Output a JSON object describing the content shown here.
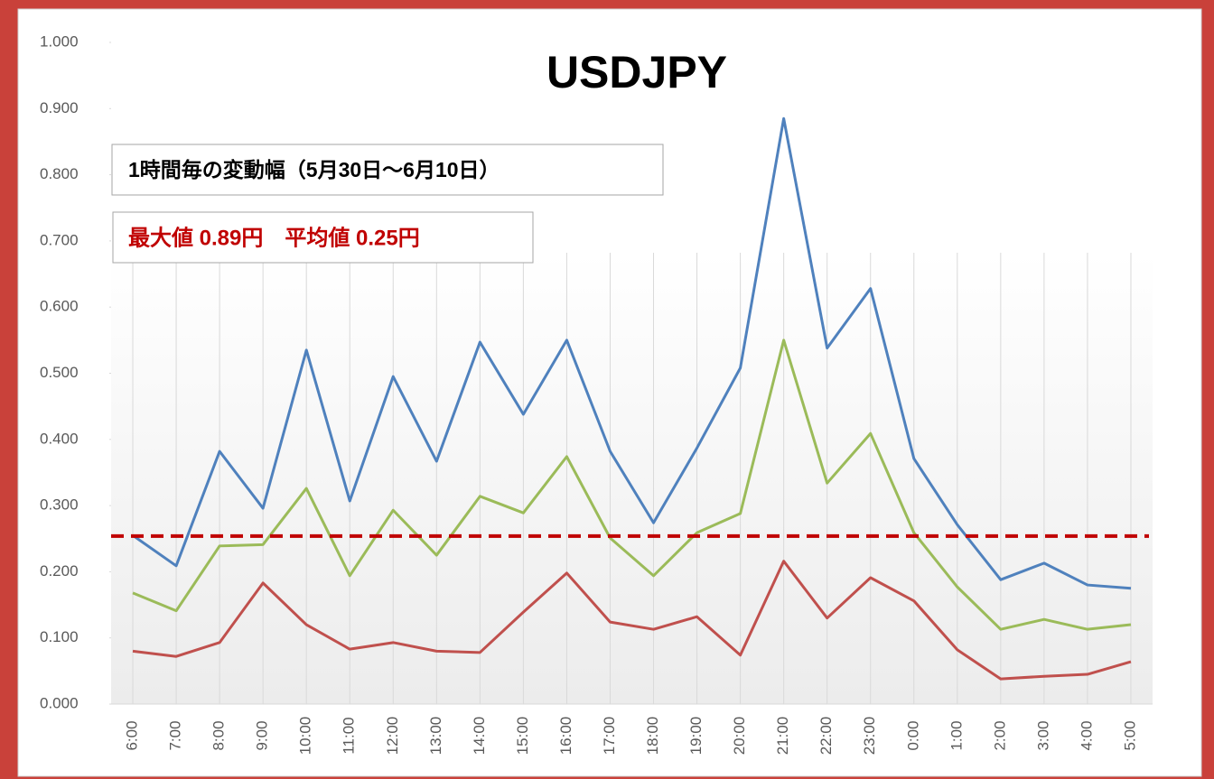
{
  "chart_data": {
    "type": "line",
    "title": "USDJPY",
    "annotations": [
      "1時間毎の変動幅（5月30日～6月10日）",
      "最大値 0.89円　平均値 0.25円"
    ],
    "categories": [
      "6:00",
      "7:00",
      "8:00",
      "9:00",
      "10:00",
      "11:00",
      "12:00",
      "13:00",
      "14:00",
      "15:00",
      "16:00",
      "17:00",
      "18:00",
      "19:00",
      "20:00",
      "21:00",
      "22:00",
      "23:00",
      "0:00",
      "1:00",
      "2:00",
      "3:00",
      "4:00",
      "5:00"
    ],
    "series": [
      {
        "color": "#4f81bd",
        "values": [
          0.255,
          0.209,
          0.382,
          0.296,
          0.535,
          0.307,
          0.495,
          0.367,
          0.547,
          0.438,
          0.55,
          0.382,
          0.274,
          0.387,
          0.508,
          0.885,
          0.538,
          0.628,
          0.371,
          0.271,
          0.188,
          0.213,
          0.18,
          0.175
        ]
      },
      {
        "color": "#9bbb59",
        "values": [
          0.168,
          0.141,
          0.239,
          0.241,
          0.326,
          0.194,
          0.293,
          0.225,
          0.314,
          0.289,
          0.374,
          0.251,
          0.194,
          0.259,
          0.288,
          0.55,
          0.334,
          0.409,
          0.259,
          0.177,
          0.113,
          0.128,
          0.113,
          0.12
        ]
      },
      {
        "color": "#c0504d",
        "values": [
          0.08,
          0.072,
          0.093,
          0.183,
          0.12,
          0.083,
          0.093,
          0.08,
          0.078,
          0.139,
          0.198,
          0.124,
          0.113,
          0.132,
          0.074,
          0.216,
          0.13,
          0.191,
          0.156,
          0.082,
          0.038,
          0.042,
          0.045,
          0.064
        ]
      }
    ],
    "average_line": {
      "value": 0.254,
      "color": "#c00000"
    },
    "ylim": [
      0,
      1
    ],
    "yticks": [
      {
        "value": 0,
        "label": "0.000"
      },
      {
        "value": 0.1,
        "label": "0.100"
      },
      {
        "value": 0.2,
        "label": "0.200"
      },
      {
        "value": 0.3,
        "label": "0.300"
      },
      {
        "value": 0.4,
        "label": "0.400"
      },
      {
        "value": 0.5,
        "label": "0.500"
      },
      {
        "value": 0.6,
        "label": "0.600"
      },
      {
        "value": 0.7,
        "label": "0.700"
      },
      {
        "value": 0.8,
        "label": "0.800"
      },
      {
        "value": 0.9,
        "label": "0.900"
      },
      {
        "value": 1,
        "label": "1.000"
      }
    ],
    "grid": "x"
  }
}
